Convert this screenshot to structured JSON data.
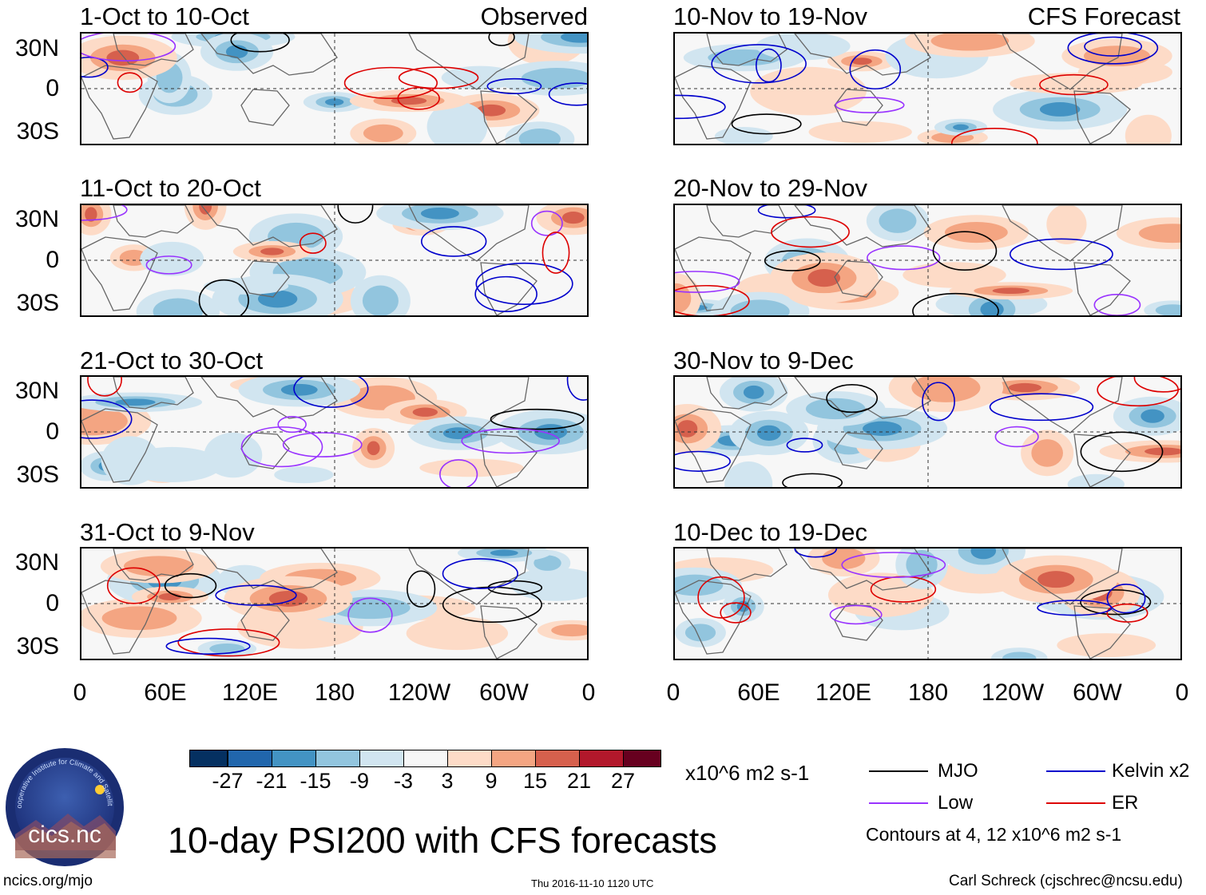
{
  "header": {
    "left_label": "Observed",
    "right_label": "CFS Forecast"
  },
  "panels_left": [
    {
      "title": "1-Oct to 10-Oct"
    },
    {
      "title": "11-Oct to 20-Oct"
    },
    {
      "title": "21-Oct to 30-Oct"
    },
    {
      "title": "31-Oct to 9-Nov"
    }
  ],
  "panels_right": [
    {
      "title": "10-Nov to 19-Nov"
    },
    {
      "title": "20-Nov to 29-Nov"
    },
    {
      "title": "30-Nov to 9-Dec"
    },
    {
      "title": "10-Dec to 19-Dec"
    }
  ],
  "y_ticks": [
    "30N",
    "0",
    "30S"
  ],
  "x_ticks": [
    "0",
    "60E",
    "120E",
    "180",
    "120W",
    "60W",
    "0"
  ],
  "colorbar": {
    "colors": [
      "#053061",
      "#2166ac",
      "#4393c3",
      "#92c5de",
      "#d1e5f0",
      "#f7f7f7",
      "#fddbc7",
      "#f4a582",
      "#d6604d",
      "#b2182b",
      "#67001f"
    ],
    "labels": [
      "-27",
      "-21",
      "-15",
      "-9",
      "-3",
      "3",
      "9",
      "15",
      "21",
      "27"
    ],
    "units": "x10^6 m2 s-1"
  },
  "legend": {
    "items": [
      {
        "label": "MJO",
        "color": "#000000"
      },
      {
        "label": "Kelvin x2",
        "color": "#0000cc"
      },
      {
        "label": "Low",
        "color": "#9933ff"
      },
      {
        "label": "ER",
        "color": "#dd0000"
      }
    ],
    "contours_note": "Contours at 4, 12 x10^6 m2 s-1"
  },
  "main_title": "10-day PSI200 with CFS forecasts",
  "logo_text": "cics.nc",
  "logo_ring_text": "Cooperative Institute for Climate and Satellites",
  "footer": {
    "left": "ncics.org/mjo",
    "center": "Thu 2016-11-10 1120 UTC",
    "right": "Carl Schreck (cjschrec@ncsu.edu)"
  }
}
